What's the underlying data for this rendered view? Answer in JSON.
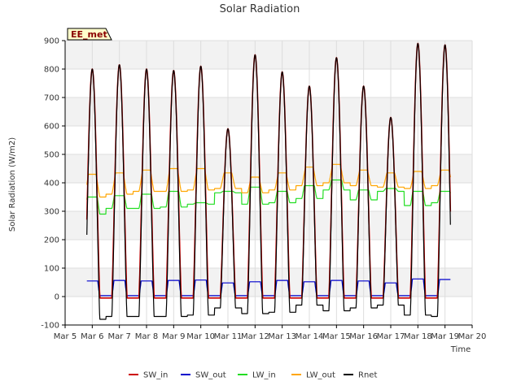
{
  "chart_data": {
    "type": "line",
    "title": "Solar Radiation",
    "xlabel": "Time",
    "ylabel": "Solar Radiation (W/m2)",
    "badge": "EE_met",
    "xlim": [
      5,
      20
    ],
    "ylim": [
      -100,
      900
    ],
    "x_ticks": [
      {
        "v": 5,
        "label": "Mar 5"
      },
      {
        "v": 6,
        "label": "Mar 6"
      },
      {
        "v": 7,
        "label": "Mar 7"
      },
      {
        "v": 8,
        "label": "Mar 8"
      },
      {
        "v": 9,
        "label": "Mar 9"
      },
      {
        "v": 10,
        "label": "Mar 10"
      },
      {
        "v": 11,
        "label": "Mar 11"
      },
      {
        "v": 12,
        "label": "Mar 12"
      },
      {
        "v": 13,
        "label": "Mar 13"
      },
      {
        "v": 14,
        "label": "Mar 14"
      },
      {
        "v": 15,
        "label": "Mar 15"
      },
      {
        "v": 16,
        "label": "Mar 16"
      },
      {
        "v": 17,
        "label": "Mar 17"
      },
      {
        "v": 18,
        "label": "Mar 18"
      },
      {
        "v": 19,
        "label": "Mar 19"
      },
      {
        "v": 20,
        "label": "Mar 20"
      }
    ],
    "y_ticks": [
      -100,
      0,
      100,
      200,
      300,
      400,
      500,
      600,
      700,
      800,
      900
    ],
    "grid": true,
    "legend_position": "bottom",
    "day_start": 5.8,
    "day_end": 19.2,
    "daily": {
      "days": [
        6,
        7,
        8,
        9,
        10,
        11,
        12,
        13,
        14,
        15,
        16,
        17,
        18,
        19
      ],
      "sw_peak": [
        800,
        815,
        800,
        795,
        810,
        590,
        850,
        790,
        740,
        840,
        740,
        630,
        890,
        885
      ],
      "sw_out_peak": [
        55,
        57,
        55,
        57,
        58,
        48,
        52,
        57,
        52,
        57,
        55,
        48,
        62,
        60
      ],
      "lw_in": [
        350,
        355,
        360,
        370,
        330,
        370,
        385,
        370,
        390,
        410,
        375,
        380,
        370,
        370
      ],
      "lw_in_night": [
        290,
        310,
        310,
        315,
        325,
        365,
        325,
        330,
        345,
        375,
        340,
        370,
        320,
        330
      ],
      "lw_out": [
        430,
        435,
        445,
        450,
        450,
        435,
        420,
        435,
        455,
        465,
        445,
        435,
        440,
        445
      ],
      "lw_out_night": [
        350,
        360,
        370,
        370,
        375,
        380,
        365,
        375,
        390,
        400,
        390,
        385,
        380,
        390
      ],
      "rnet_night": [
        -80,
        -70,
        -70,
        -70,
        -65,
        -40,
        -60,
        -55,
        -30,
        -50,
        -40,
        -30,
        -65,
        -70
      ]
    },
    "series": [
      {
        "name": "SW_in",
        "color": "#cc0000"
      },
      {
        "name": "SW_out",
        "color": "#0000cc"
      },
      {
        "name": "LW_in",
        "color": "#22dd22"
      },
      {
        "name": "LW_out",
        "color": "#ffa500"
      },
      {
        "name": "Rnet",
        "color": "#000000"
      }
    ]
  }
}
